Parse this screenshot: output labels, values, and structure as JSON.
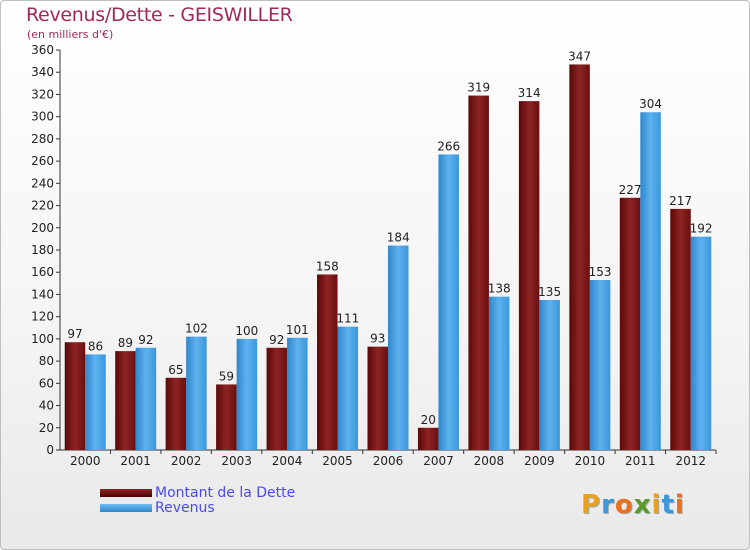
{
  "page": {
    "title": "Revenus/Dette - GEISWILLER",
    "subtitle": "(en milliers d'€)"
  },
  "colors": {
    "dette": "#7a1414",
    "revenus": "#3a97dc",
    "title": "#a0285a",
    "legend_text": "#4a4af0"
  },
  "chart_data": {
    "type": "bar",
    "title": "Revenus/Dette - GEISWILLER",
    "ylabel": "(en milliers d'€)",
    "categories": [
      "2000",
      "2001",
      "2002",
      "2003",
      "2004",
      "2005",
      "2006",
      "2007",
      "2008",
      "2009",
      "2010",
      "2011",
      "2012"
    ],
    "series": [
      {
        "name": "Montant de la Dette",
        "values": [
          97,
          89,
          65,
          59,
          92,
          158,
          93,
          20,
          319,
          314,
          347,
          227,
          217
        ]
      },
      {
        "name": "Revenus",
        "values": [
          86,
          92,
          102,
          100,
          101,
          111,
          184,
          266,
          138,
          135,
          153,
          304,
          192
        ]
      }
    ],
    "ylim": [
      0,
      360
    ],
    "yticks": [
      0,
      20,
      40,
      60,
      80,
      100,
      120,
      140,
      160,
      180,
      200,
      220,
      240,
      260,
      280,
      300,
      320,
      340,
      360
    ],
    "grid": false,
    "legend": "bottom-left"
  },
  "legend": {
    "dette_label": "Montant de la Dette",
    "revenus_label": "Revenus"
  },
  "logo": {
    "letters": [
      "P",
      "r",
      "o",
      "x",
      "i",
      "t",
      "i"
    ]
  }
}
